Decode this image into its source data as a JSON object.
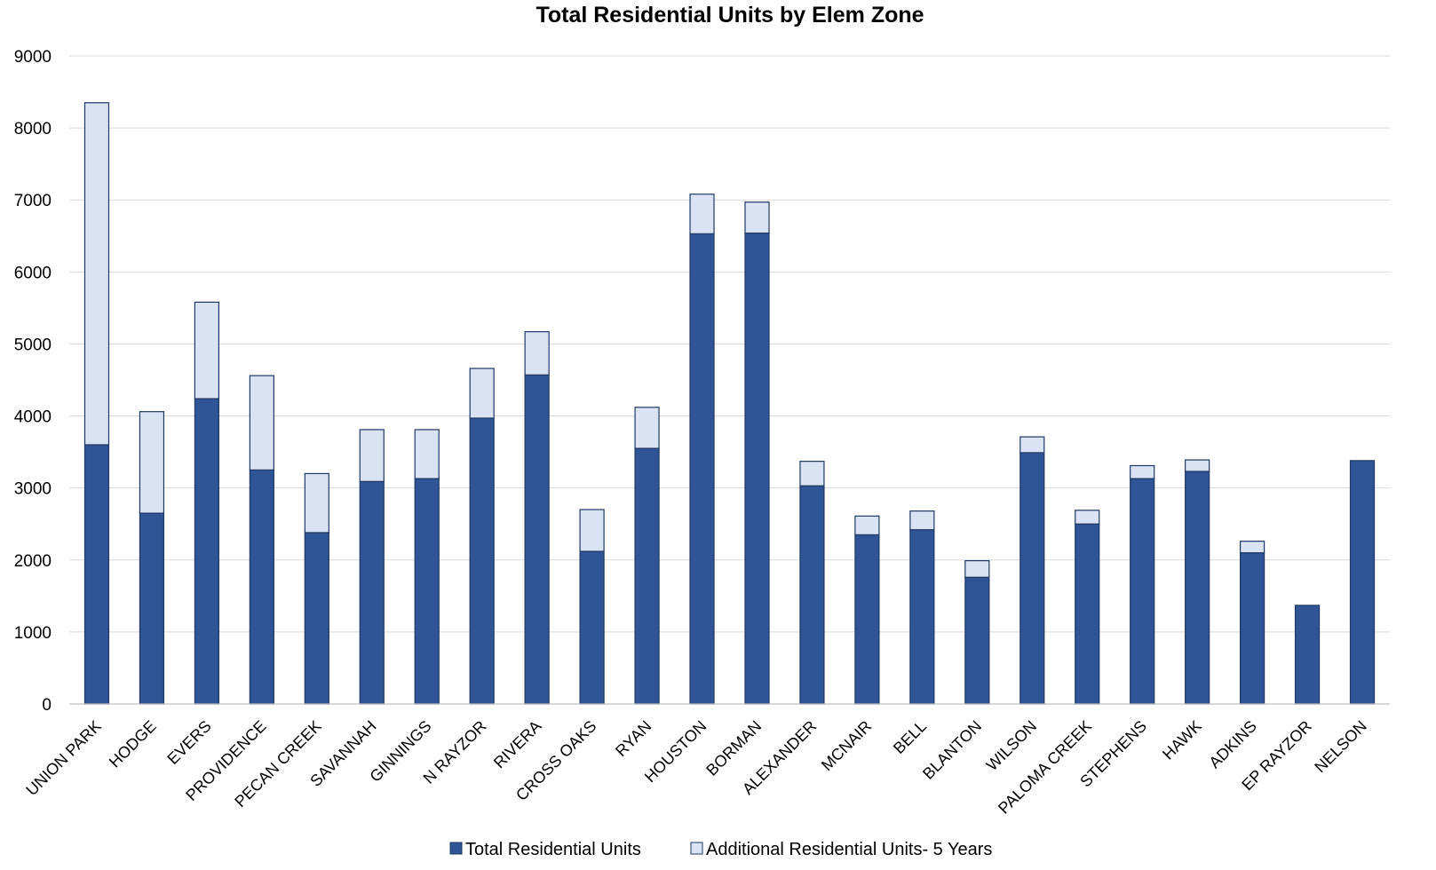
{
  "chart_data": {
    "type": "bar",
    "stacked": true,
    "title": "Total Residential Units by Elem Zone",
    "xlabel": "",
    "ylabel": "",
    "ylim": [
      0,
      9000
    ],
    "yticks": [
      0,
      1000,
      2000,
      3000,
      4000,
      5000,
      6000,
      7000,
      8000,
      9000
    ],
    "grid": true,
    "legend_position": "bottom",
    "categories": [
      "UNION PARK",
      "HODGE",
      "EVERS",
      "PROVIDENCE",
      "PECAN CREEK",
      "SAVANNAH",
      "GINNINGS",
      "N RAYZOR",
      "RIVERA",
      "CROSS OAKS",
      "RYAN",
      "HOUSTON",
      "BORMAN",
      "ALEXANDER",
      "MCNAIR",
      "BELL",
      "BLANTON",
      "WILSON",
      "PALOMA CREEK",
      "STEPHENS",
      "HAWK",
      "ADKINS",
      "EP RAYZOR",
      "NELSON"
    ],
    "series": [
      {
        "name": "Total Residential Units",
        "color": "#2f5597",
        "values": [
          3600,
          2650,
          4240,
          3250,
          2380,
          3090,
          3130,
          3970,
          4570,
          2120,
          3550,
          6530,
          6540,
          3030,
          2350,
          2420,
          1760,
          3490,
          2500,
          3130,
          3230,
          2100,
          1370,
          3380
        ]
      },
      {
        "name": "Additional Residential Units- 5 Years",
        "color": "#dae3f3",
        "values": [
          4750,
          1410,
          1340,
          1310,
          820,
          720,
          680,
          690,
          600,
          580,
          570,
          550,
          430,
          340,
          260,
          260,
          230,
          220,
          190,
          180,
          160,
          160,
          0,
          0
        ]
      }
    ]
  }
}
